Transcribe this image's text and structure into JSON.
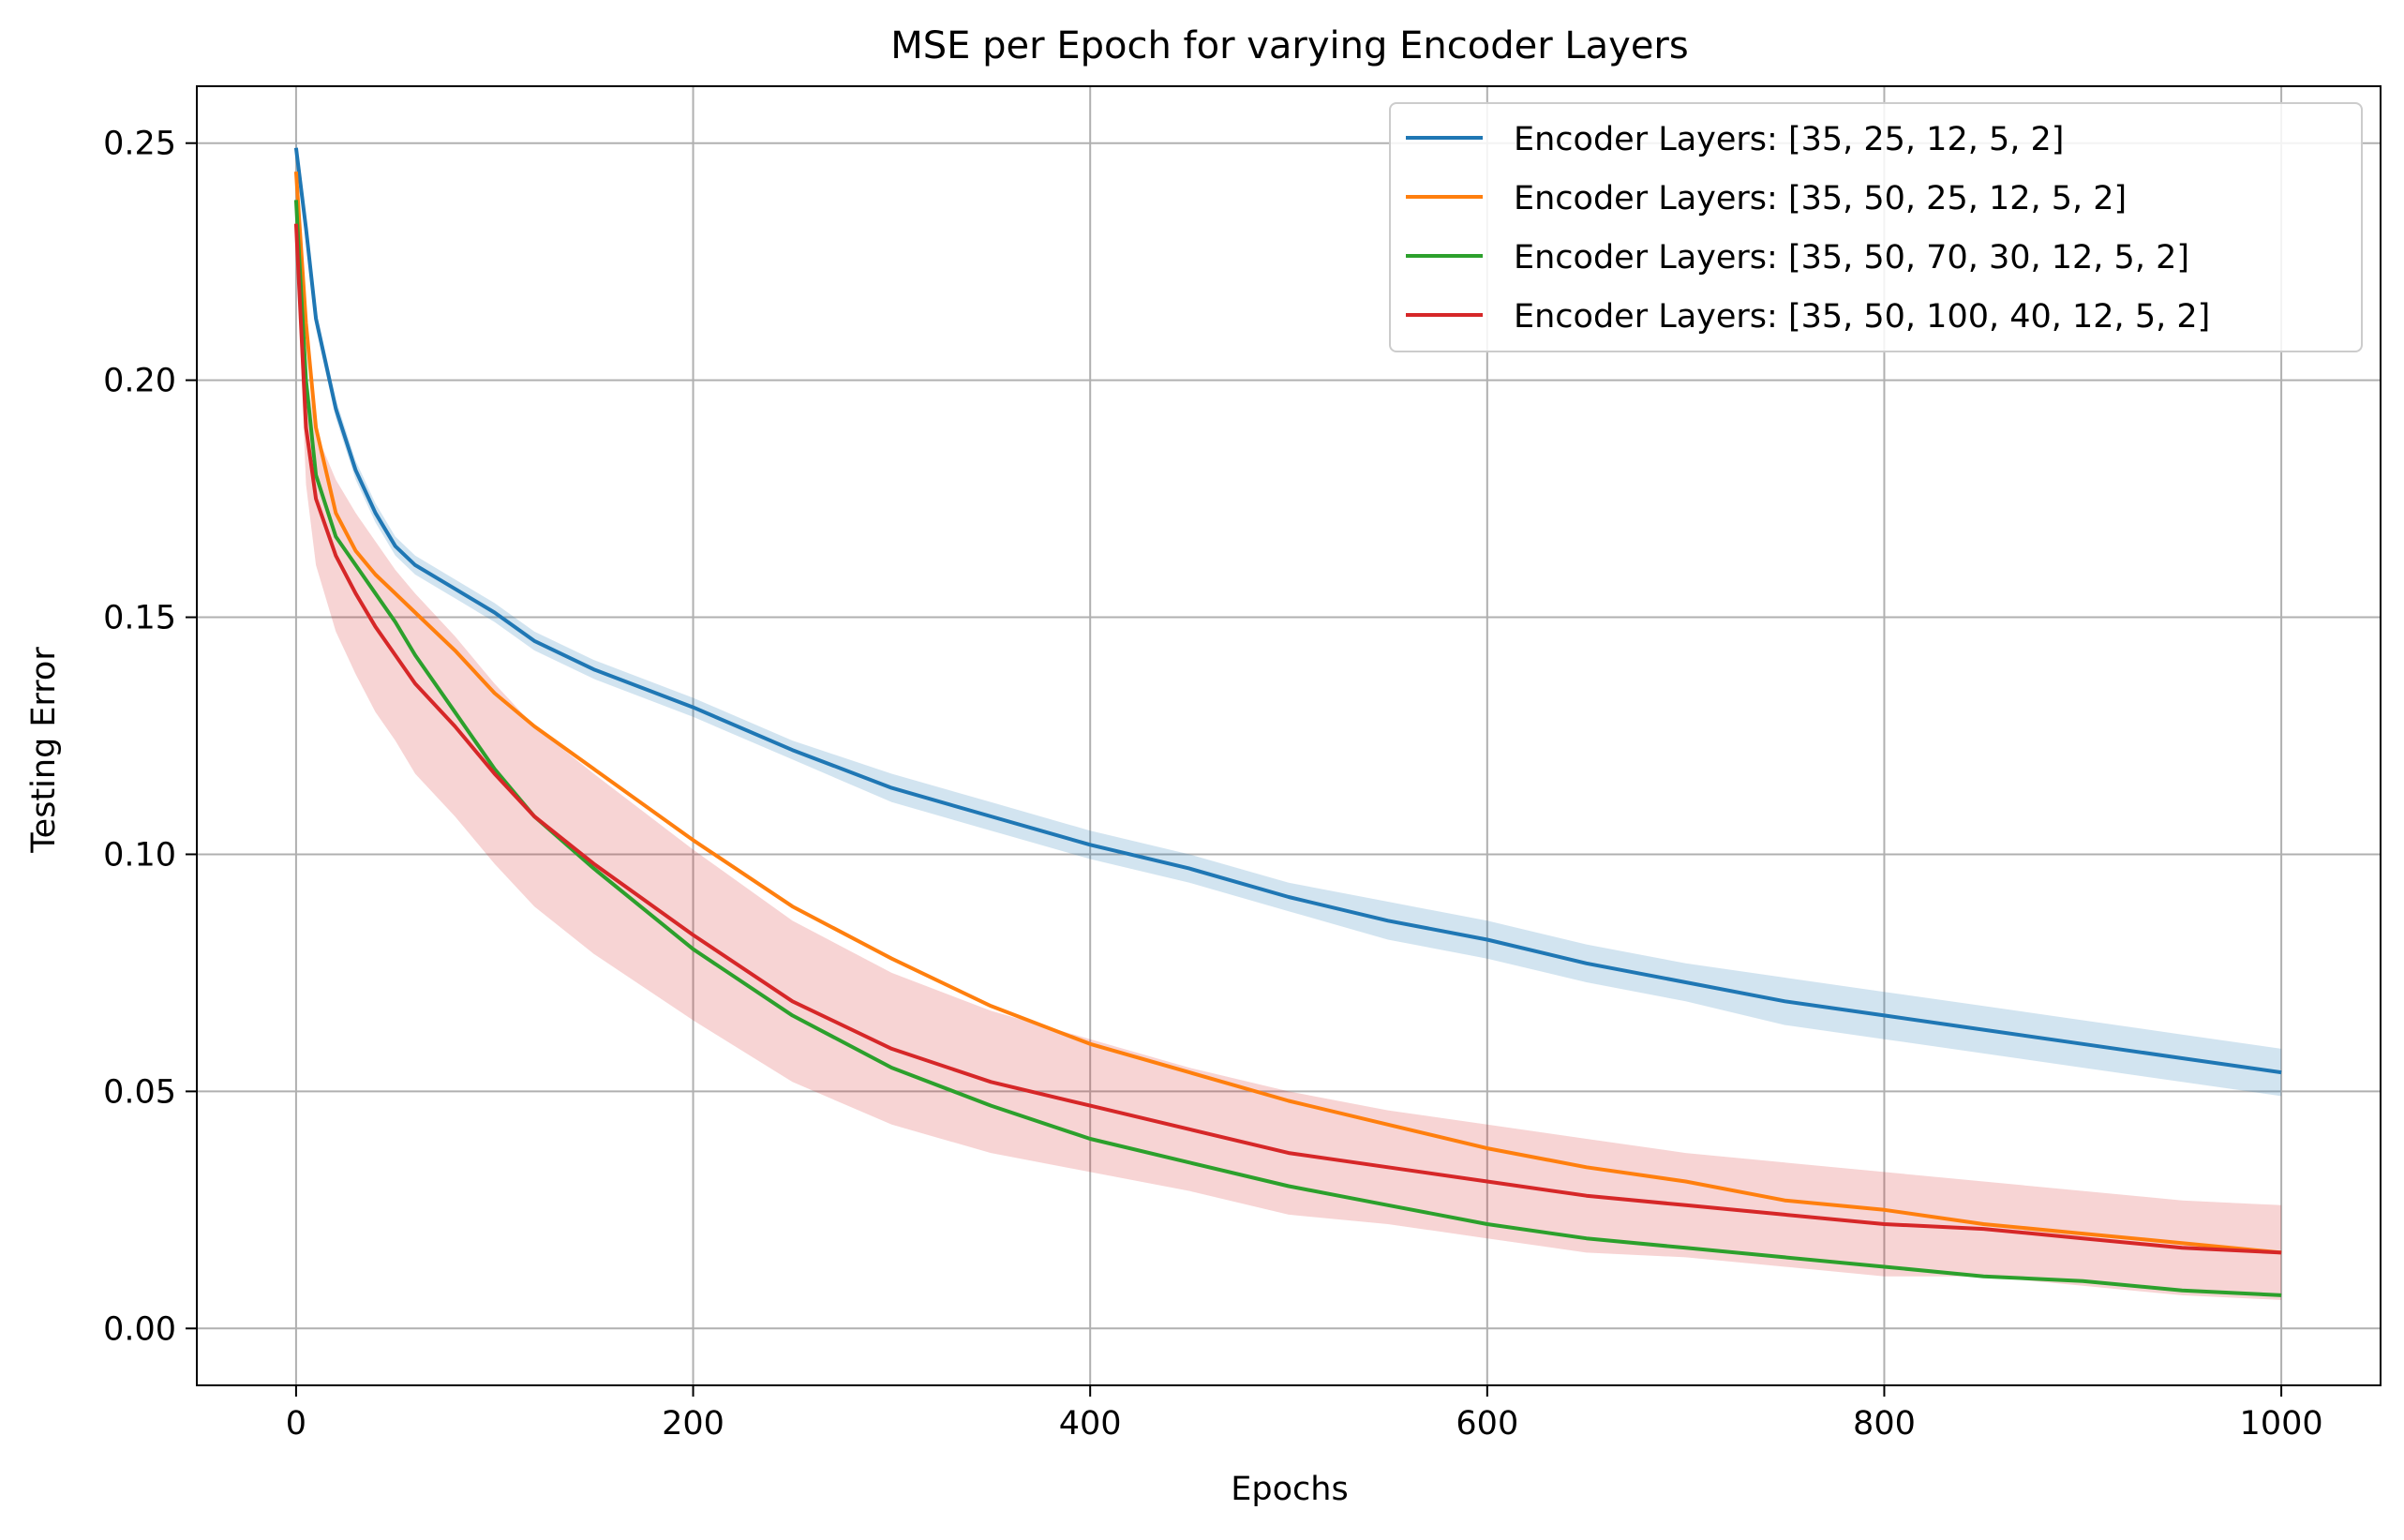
{
  "chart_data": {
    "type": "line",
    "title": "MSE per Epoch for varying Encoder Layers",
    "xlabel": "Epochs",
    "ylabel": "Testing Error",
    "xlim": [
      -50,
      1050
    ],
    "ylim": [
      -0.012,
      0.262
    ],
    "xticks": [
      0,
      200,
      400,
      600,
      800,
      1000
    ],
    "xtick_labels": [
      "0",
      "200",
      "400",
      "600",
      "800",
      "1000"
    ],
    "yticks": [
      0.0,
      0.05,
      0.1,
      0.15,
      0.2,
      0.25
    ],
    "ytick_labels": [
      "0.00",
      "0.05",
      "0.10",
      "0.15",
      "0.20",
      "0.25"
    ],
    "grid": true,
    "legend_position": "top-right",
    "shaded_band": "variability band around each mean line",
    "series": [
      {
        "name": "Encoder Layers: [35, 25, 12, 5, 2]",
        "color": "#1f77b4",
        "x": [
          0,
          5,
          10,
          20,
          30,
          40,
          50,
          60,
          80,
          100,
          120,
          150,
          200,
          250,
          300,
          350,
          400,
          450,
          500,
          550,
          600,
          650,
          700,
          750,
          800,
          850,
          900,
          950,
          1000
        ],
        "y": [
          0.249,
          0.232,
          0.213,
          0.194,
          0.181,
          0.172,
          0.165,
          0.161,
          0.156,
          0.151,
          0.145,
          0.139,
          0.131,
          0.122,
          0.114,
          0.108,
          0.102,
          0.097,
          0.091,
          0.086,
          0.082,
          0.077,
          0.073,
          0.069,
          0.066,
          0.063,
          0.06,
          0.057,
          0.054
        ],
        "band": [
          0.002,
          0.002,
          0.002,
          0.002,
          0.002,
          0.002,
          0.002,
          0.002,
          0.002,
          0.002,
          0.002,
          0.002,
          0.002,
          0.002,
          0.003,
          0.003,
          0.003,
          0.003,
          0.003,
          0.004,
          0.004,
          0.004,
          0.004,
          0.005,
          0.005,
          0.005,
          0.005,
          0.005,
          0.005
        ]
      },
      {
        "name": "Encoder Layers: [35, 50, 25, 12, 5, 2]",
        "color": "#ff7f0e",
        "x": [
          0,
          5,
          10,
          20,
          30,
          40,
          50,
          60,
          80,
          100,
          120,
          150,
          200,
          250,
          300,
          350,
          400,
          450,
          500,
          550,
          600,
          650,
          700,
          750,
          800,
          850,
          900,
          950,
          1000
        ],
        "y": [
          0.244,
          0.212,
          0.19,
          0.172,
          0.164,
          0.159,
          0.155,
          0.151,
          0.143,
          0.134,
          0.127,
          0.118,
          0.103,
          0.089,
          0.078,
          0.068,
          0.06,
          0.054,
          0.048,
          0.043,
          0.038,
          0.034,
          0.031,
          0.027,
          0.025,
          0.022,
          0.02,
          0.018,
          0.016
        ]
      },
      {
        "name": "Encoder Layers: [35, 50, 70, 30, 12, 5, 2]",
        "color": "#2ca02c",
        "x": [
          0,
          5,
          10,
          20,
          30,
          40,
          50,
          60,
          80,
          100,
          120,
          150,
          200,
          250,
          300,
          350,
          400,
          450,
          500,
          550,
          600,
          650,
          700,
          750,
          800,
          850,
          900,
          950,
          1000
        ],
        "y": [
          0.238,
          0.2,
          0.18,
          0.167,
          0.161,
          0.155,
          0.149,
          0.142,
          0.13,
          0.118,
          0.108,
          0.097,
          0.08,
          0.066,
          0.055,
          0.047,
          0.04,
          0.035,
          0.03,
          0.026,
          0.022,
          0.019,
          0.017,
          0.015,
          0.013,
          0.011,
          0.01,
          0.008,
          0.007
        ]
      },
      {
        "name": "Encoder Layers: [35, 50, 100, 40, 12, 5, 2]",
        "color": "#d62728",
        "x": [
          0,
          5,
          10,
          20,
          30,
          40,
          50,
          60,
          80,
          100,
          120,
          150,
          200,
          250,
          300,
          350,
          400,
          450,
          500,
          550,
          600,
          650,
          700,
          750,
          800,
          850,
          900,
          950,
          1000
        ],
        "y": [
          0.233,
          0.19,
          0.175,
          0.163,
          0.155,
          0.148,
          0.142,
          0.136,
          0.127,
          0.117,
          0.108,
          0.098,
          0.083,
          0.069,
          0.059,
          0.052,
          0.047,
          0.042,
          0.037,
          0.034,
          0.031,
          0.028,
          0.026,
          0.024,
          0.022,
          0.021,
          0.019,
          0.017,
          0.016
        ],
        "band": [
          0.004,
          0.012,
          0.014,
          0.016,
          0.017,
          0.018,
          0.018,
          0.019,
          0.019,
          0.019,
          0.019,
          0.019,
          0.018,
          0.017,
          0.016,
          0.015,
          0.014,
          0.013,
          0.013,
          0.012,
          0.012,
          0.012,
          0.011,
          0.011,
          0.011,
          0.01,
          0.01,
          0.01,
          0.01
        ]
      }
    ]
  }
}
